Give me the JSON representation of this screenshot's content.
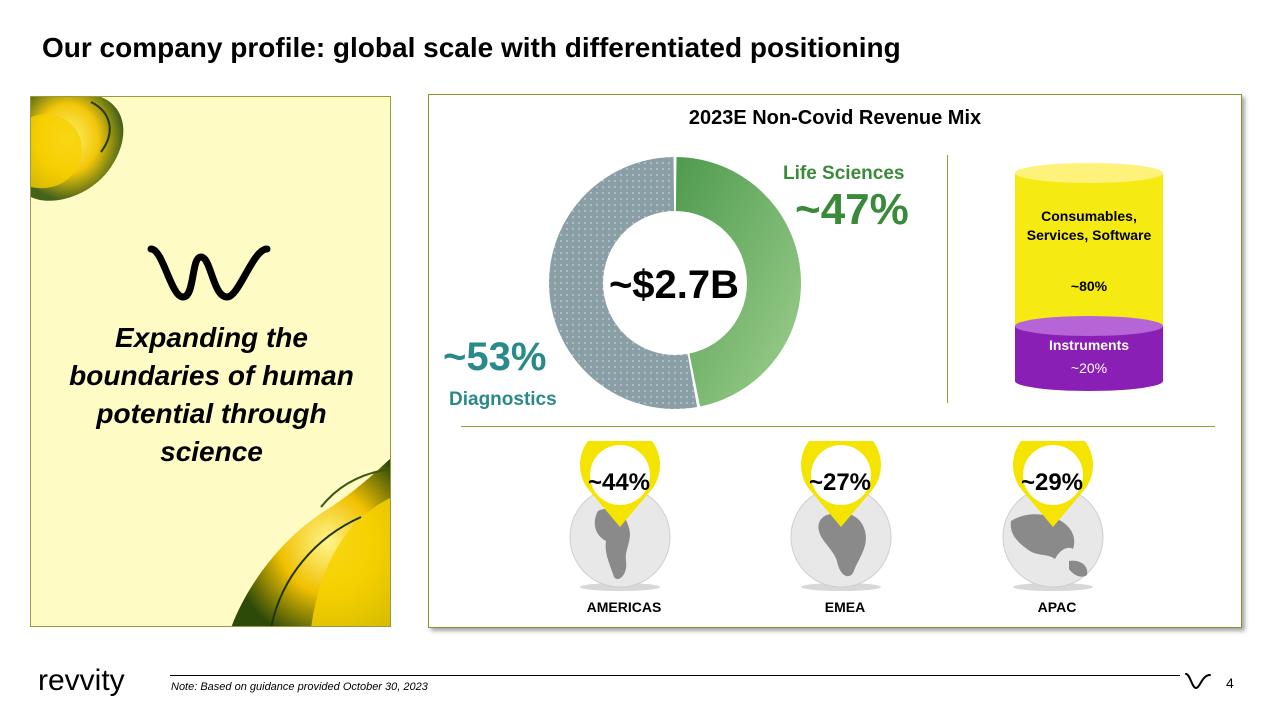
{
  "page": {
    "title": "Our company profile: global scale with differentiated positioning"
  },
  "left_panel": {
    "logo_icon": "revvity-w-mark-icon",
    "tagline": "Expanding the boundaries of human potential through science"
  },
  "revenue_mix": {
    "title": "2023E Non-Covid Revenue Mix",
    "total": "~$2.7B",
    "segments": [
      {
        "label": "Life Sciences",
        "pct_label": "~47%",
        "value": 47,
        "color": "#5aa55a"
      },
      {
        "label": "Diagnostics",
        "pct_label": "~53%",
        "value": 53,
        "color": "#8a9ea5"
      }
    ],
    "revenue_type": [
      {
        "label": "Consumables, Services, Software",
        "pct_label": "~80%",
        "value": 80,
        "color": "#f5ea12"
      },
      {
        "label": "Instruments",
        "pct_label": "~20%",
        "value": 20,
        "color": "#8a1fb5"
      }
    ],
    "regions": [
      {
        "name": "AMERICAS",
        "pct_label": "~44%",
        "value": 44
      },
      {
        "name": "EMEA",
        "pct_label": "~27%",
        "value": 27
      },
      {
        "name": "APAC",
        "pct_label": "~29%",
        "value": 29
      }
    ]
  },
  "footer": {
    "logo_text": "revvity",
    "note": "Note: Based on guidance provided October 30, 2023",
    "page_number": "4"
  },
  "colors": {
    "accent_yellow": "#f5e400",
    "life_sciences_green": "#3a8a3a",
    "diagnostics_teal": "#2a8a8a",
    "panel_bg": "#fffbc4"
  }
}
